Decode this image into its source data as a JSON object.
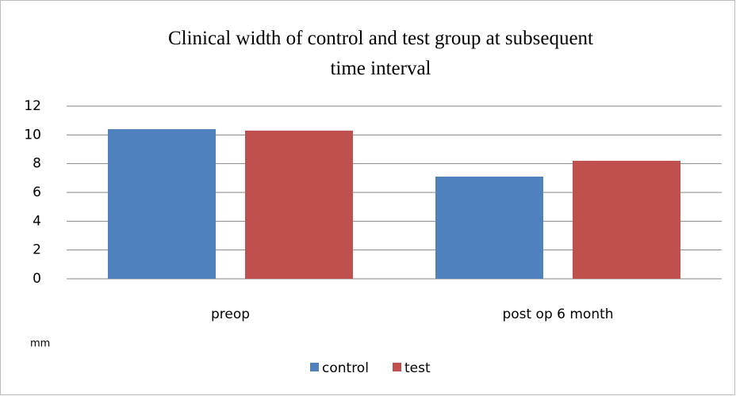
{
  "chart_data": {
    "type": "bar",
    "title": "Clinical width of control and test group at subsequent time interval",
    "y_label": "mm",
    "categories": [
      "preop",
      "post op 6 month"
    ],
    "series": [
      {
        "name": "control",
        "color": "#4f81bd",
        "values": [
          10.4,
          7.1
        ]
      },
      {
        "name": "test",
        "color": "#c0504d",
        "values": [
          10.3,
          8.2
        ]
      }
    ],
    "ylim": [
      0,
      12
    ],
    "yticks": [
      0,
      2,
      4,
      6,
      8,
      10,
      12
    ],
    "grid": true,
    "legend": "bottom"
  }
}
